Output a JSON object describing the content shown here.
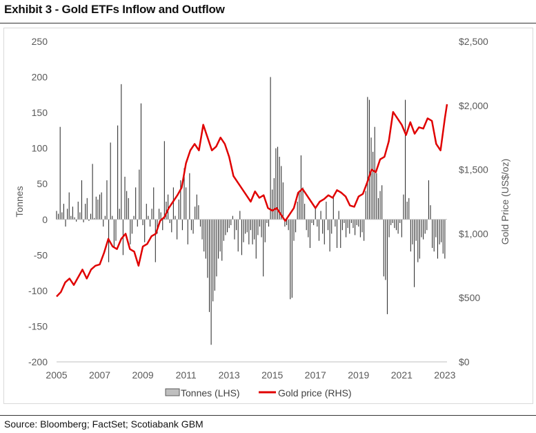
{
  "title": "Exhibit 3 - Gold ETFs Inflow and Outflow",
  "source": "Source: Bloomberg; FactSet; Scotiabank GBM",
  "colors": {
    "bars": "#333333",
    "line": "#e00000",
    "legend_bar_fill": "#bfbfbf"
  },
  "chart_data": {
    "type": "bar+line",
    "xlabel": "",
    "ylabel_left": "Tonnes",
    "ylabel_right": "Gold Price (US$/oz)",
    "ylim_left": [
      -200,
      250
    ],
    "ylim_right": [
      0,
      2500
    ],
    "xlim": [
      2005,
      2023.1
    ],
    "x_ticks": [
      "2005",
      "2007",
      "2009",
      "2011",
      "2013",
      "2015",
      "2017",
      "2019",
      "2021",
      "2023"
    ],
    "y_left_ticks": [
      "250",
      "200",
      "150",
      "100",
      "50",
      "0",
      "-50",
      "-100",
      "-150",
      "-200"
    ],
    "y_right_ticks": [
      "$2,500",
      "$2,000",
      "$1,500",
      "$1,000",
      "$500",
      "$0"
    ],
    "legend_position": "bottom",
    "grid": false,
    "series": [
      {
        "name": "Tonnes (LHS)",
        "type": "bar",
        "axis": "left",
        "x_start": 2005.0,
        "x_step_months": 1,
        "values": [
          12,
          8,
          130,
          10,
          22,
          -10,
          15,
          38,
          5,
          18,
          3,
          -3,
          25,
          10,
          55,
          -4,
          22,
          30,
          -2,
          8,
          78,
          2,
          32,
          28,
          35,
          38,
          -10,
          5,
          55,
          -60,
          108,
          5,
          -40,
          -30,
          132,
          15,
          190,
          -50,
          60,
          40,
          30,
          -35,
          -20,
          5,
          45,
          -10,
          70,
          163,
          -8,
          -32,
          22,
          5,
          -10,
          15,
          45,
          -60,
          -20,
          15,
          10,
          -15,
          110,
          25,
          35,
          -5,
          -18,
          45,
          5,
          -28,
          28,
          55,
          -15,
          72,
          45,
          -35,
          65,
          -15,
          -20,
          18,
          35,
          20,
          -10,
          -28,
          -45,
          -55,
          -82,
          -130,
          -176,
          -115,
          -100,
          -80,
          -55,
          -45,
          -58,
          -30,
          -22,
          -18,
          -12,
          -8,
          5,
          -28,
          -15,
          -45,
          12,
          -50,
          -32,
          -20,
          -18,
          -35,
          -15,
          -35,
          -28,
          -55,
          -22,
          -10,
          -25,
          -80,
          -32,
          -5,
          -10,
          200,
          42,
          58,
          100,
          102,
          88,
          75,
          52,
          -10,
          -8,
          -15,
          -112,
          -110,
          -30,
          -18,
          25,
          38,
          90,
          45,
          22,
          -15,
          -25,
          -40,
          -5,
          -8,
          18,
          -10,
          -30,
          12,
          -20,
          -35,
          25,
          -15,
          -45,
          -20,
          32,
          -10,
          -40,
          12,
          -40,
          -15,
          -5,
          -25,
          -12,
          -20,
          -5,
          -12,
          -22,
          -8,
          -10,
          -25,
          -18,
          -30,
          40,
          172,
          168,
          115,
          95,
          130,
          65,
          30,
          40,
          48,
          -80,
          -85,
          -133,
          -25,
          -8,
          -5,
          -12,
          -15,
          -20,
          -5,
          -25,
          35,
          168,
          25,
          30,
          -45,
          -35,
          -95,
          -30,
          -60,
          -55,
          -25,
          -28,
          -20,
          -15,
          55,
          20,
          -40,
          -45,
          -25,
          -55,
          -35,
          -32,
          -48,
          -55
        ]
      },
      {
        "name": "Gold price (RHS)",
        "type": "line",
        "axis": "right",
        "x": [
          2005.0,
          2005.2,
          2005.4,
          2005.6,
          2005.8,
          2006.0,
          2006.2,
          2006.4,
          2006.6,
          2006.8,
          2007.0,
          2007.2,
          2007.4,
          2007.6,
          2007.8,
          2008.0,
          2008.2,
          2008.4,
          2008.6,
          2008.8,
          2009.0,
          2009.2,
          2009.4,
          2009.6,
          2009.8,
          2010.0,
          2010.2,
          2010.4,
          2010.6,
          2010.8,
          2011.0,
          2011.2,
          2011.4,
          2011.6,
          2011.8,
          2012.0,
          2012.2,
          2012.4,
          2012.6,
          2012.8,
          2013.0,
          2013.2,
          2013.4,
          2013.6,
          2013.8,
          2014.0,
          2014.2,
          2014.4,
          2014.6,
          2014.8,
          2015.0,
          2015.2,
          2015.4,
          2015.6,
          2015.8,
          2016.0,
          2016.2,
          2016.4,
          2016.6,
          2016.8,
          2017.0,
          2017.2,
          2017.4,
          2017.6,
          2017.8,
          2018.0,
          2018.2,
          2018.4,
          2018.6,
          2018.8,
          2019.0,
          2019.2,
          2019.4,
          2019.6,
          2019.8,
          2020.0,
          2020.2,
          2020.4,
          2020.6,
          2020.8,
          2021.0,
          2021.2,
          2021.4,
          2021.6,
          2021.8,
          2022.0,
          2022.2,
          2022.4,
          2022.6,
          2022.8,
          2023.0,
          2023.1
        ],
        "values": [
          510,
          545,
          620,
          650,
          600,
          660,
          720,
          650,
          720,
          750,
          760,
          850,
          960,
          900,
          880,
          960,
          1000,
          880,
          860,
          750,
          900,
          920,
          980,
          1000,
          1100,
          1130,
          1200,
          1250,
          1300,
          1360,
          1550,
          1650,
          1700,
          1650,
          1850,
          1750,
          1650,
          1680,
          1750,
          1700,
          1600,
          1450,
          1400,
          1350,
          1300,
          1250,
          1330,
          1280,
          1300,
          1200,
          1180,
          1200,
          1150,
          1100,
          1150,
          1200,
          1320,
          1350,
          1300,
          1250,
          1200,
          1250,
          1270,
          1300,
          1280,
          1340,
          1320,
          1290,
          1220,
          1210,
          1290,
          1310,
          1400,
          1500,
          1480,
          1580,
          1600,
          1720,
          1950,
          1900,
          1850,
          1770,
          1870,
          1780,
          1830,
          1820,
          1900,
          1880,
          1700,
          1650,
          1900,
          2010
        ]
      }
    ]
  }
}
